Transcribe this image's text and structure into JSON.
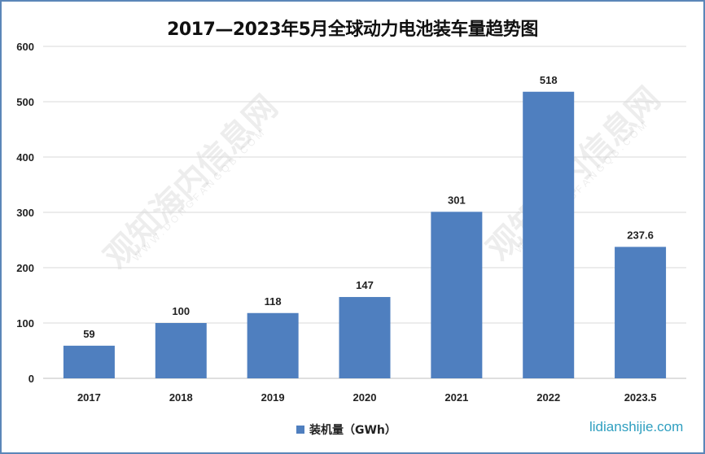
{
  "chart_data": {
    "type": "bar",
    "title": "2017—2023年5月全球动力电池装车量趋势图",
    "categories": [
      "2017",
      "2018",
      "2019",
      "2020",
      "2021",
      "2022",
      "2023.5"
    ],
    "series": [
      {
        "name": "装机量（GWh）",
        "values": [
          59,
          100,
          118,
          147,
          301,
          518,
          237.6
        ],
        "color": "#4f7fbf"
      }
    ],
    "data_labels": [
      "59",
      "100",
      "118",
      "147",
      "301",
      "518",
      "237.6"
    ],
    "ylim": [
      0,
      600
    ],
    "yticks": [
      0,
      100,
      200,
      300,
      400,
      500,
      600
    ],
    "grid": true,
    "legend": "bottom"
  },
  "watermarks": {
    "site": "lidianshijie.com",
    "brand": "观知海内信息网",
    "brand_url": "WWW.DONGFANGQB.COM"
  }
}
